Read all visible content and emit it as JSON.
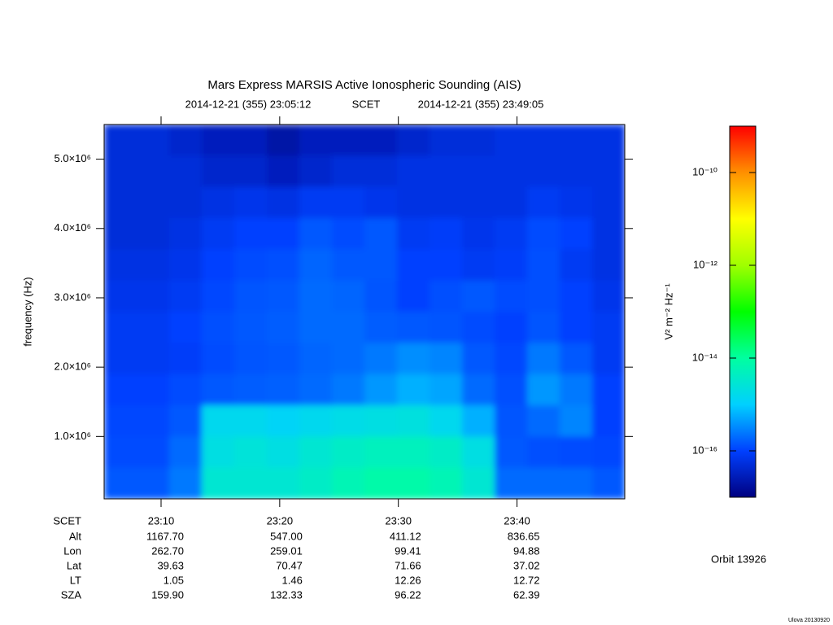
{
  "chart_data": {
    "type": "heatmap",
    "title": "Mars Express MARSIS Active Ionospheric Sounding (AIS)",
    "start": "2014-12-21 (355) 23:05:12",
    "time_system": "SCET",
    "end": "2014-12-21 (355) 23:49:05",
    "y_label": "frequency (Hz)",
    "ylim": [
      100000,
      5500000
    ],
    "yticks": [
      {
        "value": 1000000,
        "label": "1.0×10⁶"
      },
      {
        "value": 2000000,
        "label": "2.0×10⁶"
      },
      {
        "value": 3000000,
        "label": "3.0×10⁶"
      },
      {
        "value": 4000000,
        "label": "4.0×10⁶"
      },
      {
        "value": 5000000,
        "label": "5.0×10⁶"
      }
    ],
    "xticks": [
      "23:10",
      "23:20",
      "23:30",
      "23:40"
    ],
    "values": [
      [
        5e-17,
        5e-17,
        4e-17,
        3e-17,
        3e-17,
        2e-17,
        3e-17,
        3e-17,
        3e-17,
        4e-17,
        5e-17,
        5e-17,
        6e-17,
        6e-17,
        6e-17,
        6e-17
      ],
      [
        5e-17,
        5e-17,
        5e-17,
        4e-17,
        4e-17,
        3e-17,
        4e-17,
        5e-17,
        5e-17,
        6e-17,
        6e-17,
        6e-17,
        6e-17,
        6e-17,
        6e-17,
        6e-17
      ],
      [
        5e-17,
        5e-17,
        5e-17,
        6e-17,
        7e-17,
        6e-17,
        8e-17,
        8e-17,
        7e-17,
        6e-17,
        6e-17,
        6e-17,
        6e-17,
        8e-17,
        7e-17,
        6e-17
      ],
      [
        5e-17,
        5e-17,
        6e-17,
        8e-17,
        1e-16,
        1e-16,
        1.5e-16,
        1.2e-16,
        1.5e-16,
        8e-17,
        9e-17,
        7e-17,
        8e-17,
        1.2e-16,
        1e-16,
        6e-17
      ],
      [
        6e-17,
        6e-17,
        7e-17,
        1e-16,
        1.2e-16,
        1.3e-16,
        1.8e-16,
        1.5e-16,
        1.5e-16,
        1e-16,
        1e-16,
        8e-17,
        9e-17,
        1.3e-16,
        8e-17,
        6e-17
      ],
      [
        7e-17,
        7e-17,
        8e-17,
        1.1e-16,
        1.4e-16,
        1.5e-16,
        2e-16,
        1.8e-16,
        1.4e-16,
        1e-16,
        1.3e-16,
        1.5e-16,
        1.2e-16,
        1.3e-16,
        1e-16,
        7e-17
      ],
      [
        8e-17,
        8e-17,
        1e-16,
        1.3e-16,
        1.5e-16,
        1.6e-16,
        2e-16,
        2e-16,
        1.6e-16,
        1.5e-16,
        1.4e-16,
        1.2e-16,
        1e-16,
        1.4e-16,
        1e-16,
        8e-17
      ],
      [
        8e-17,
        8e-17,
        9e-17,
        1.2e-16,
        1.4e-16,
        1.5e-16,
        1.8e-16,
        2e-16,
        2.5e-16,
        3.5e-16,
        3e-16,
        1.5e-16,
        1.1e-16,
        2.5e-16,
        1.5e-16,
        8e-17
      ],
      [
        1e-16,
        1e-16,
        1.2e-16,
        1.5e-16,
        1.6e-16,
        1.7e-16,
        2e-16,
        2.5e-16,
        4e-16,
        6e-16,
        5e-16,
        2e-16,
        1.3e-16,
        4e-16,
        2.5e-16,
        1e-16
      ],
      [
        1.1e-16,
        1.1e-16,
        1.5e-16,
        1.5e-15,
        1.5e-15,
        1.2e-15,
        1.5e-15,
        1.8e-15,
        2e-15,
        2.2e-15,
        1.5e-15,
        6e-16,
        1.4e-16,
        2e-16,
        3e-16,
        1e-16
      ],
      [
        1.2e-16,
        1.2e-16,
        2e-16,
        2e-15,
        2.5e-15,
        2e-15,
        3e-15,
        4e-15,
        5e-15,
        5e-15,
        4e-15,
        2e-15,
        1.5e-16,
        1.3e-16,
        1.2e-16,
        1.1e-16
      ],
      [
        1.5e-16,
        1.5e-16,
        2.5e-16,
        3e-15,
        3e-15,
        3e-15,
        4e-15,
        6e-15,
        8e-15,
        8e-15,
        6e-15,
        3e-15,
        2e-16,
        2e-16,
        2e-16,
        1.5e-16
      ]
    ],
    "colorscale": "log",
    "colormap": [
      "#000080",
      "#0040ff",
      "#00d0ff",
      "#00ffa0",
      "#00ff00",
      "#a0ff00",
      "#ffff00",
      "#ff9000",
      "#ff0000"
    ],
    "clim": [
      1e-17,
      1e-09
    ],
    "cticks": [
      {
        "value": 1e-10,
        "label": "10⁻¹⁰"
      },
      {
        "value": 1e-12,
        "label": "10⁻¹²"
      },
      {
        "value": 1e-14,
        "label": "10⁻¹⁴"
      },
      {
        "value": 1e-16,
        "label": "10⁻¹⁶"
      }
    ],
    "c_label": "V² m⁻² Hz⁻¹",
    "ephemeris": [
      {
        "label": "Alt",
        "values": [
          "1167.70",
          "547.00",
          "411.12",
          "836.65"
        ]
      },
      {
        "label": "Lon",
        "values": [
          "262.70",
          "259.01",
          "99.41",
          "94.88"
        ]
      },
      {
        "label": "Lat",
        "values": [
          "39.63",
          "70.47",
          "71.66",
          "37.02"
        ]
      },
      {
        "label": "LT",
        "values": [
          "1.05",
          "1.46",
          "12.26",
          "12.72"
        ]
      },
      {
        "label": "SZA",
        "values": [
          "159.90",
          "132.33",
          "96.22",
          "62.39"
        ]
      }
    ],
    "orbit": "Orbit 13926",
    "footer": "Ulova 20130920"
  }
}
